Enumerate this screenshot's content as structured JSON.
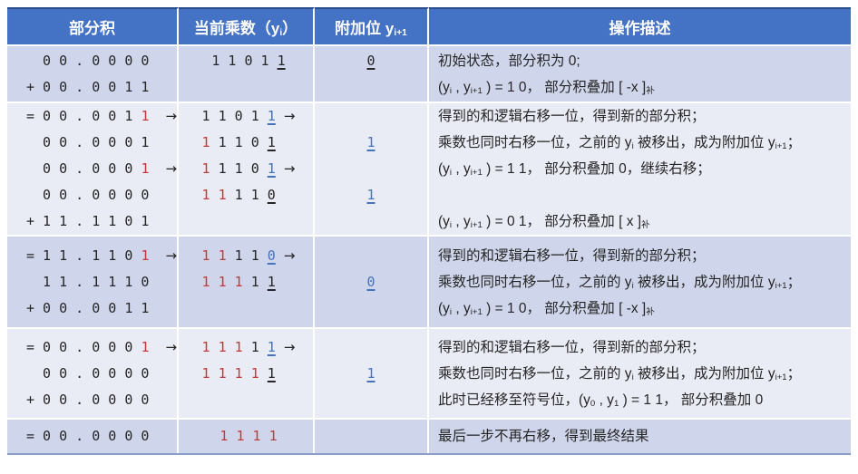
{
  "colors": {
    "header_bg": "#4472C4",
    "header_top_border": "#2B4C8C",
    "band_dark": "#CFD5EA",
    "band_light": "#E9EBF5",
    "digit_red": "#C3383A",
    "digit_blue": "#4574BD",
    "text_ink": "#262626",
    "table_bottom_border": "#8B9DC7"
  },
  "header": {
    "cells": [
      {
        "key": "partial",
        "segments": [
          {
            "t": "部分积"
          }
        ]
      },
      {
        "key": "multiplier",
        "segments": [
          {
            "t": "当前乘数（y"
          },
          {
            "t": "i",
            "c": "sub"
          },
          {
            "t": "）"
          }
        ]
      },
      {
        "key": "extra",
        "segments": [
          {
            "t": "附加位 y"
          },
          {
            "t": "i+1",
            "c": "sub"
          }
        ]
      },
      {
        "key": "desc",
        "segments": [
          {
            "t": "操作描述"
          }
        ]
      }
    ]
  },
  "rows": [
    {
      "partial": [
        [
          {
            "t": "  0 0 . 0 0 0 0"
          }
        ],
        [
          {
            "t": "+ 0 0 . 0 0 1 1"
          }
        ]
      ],
      "multiplier": [
        [
          {
            "t": "1 1 0 1 "
          },
          {
            "t": "1",
            "c": "u"
          }
        ],
        []
      ],
      "extra": [
        [
          {
            "t": "0",
            "c": "u"
          }
        ],
        []
      ],
      "desc": [
        [
          {
            "t": "初始状态，部分积为 0;"
          }
        ],
        [
          {
            "t": "(y"
          },
          {
            "t": "i",
            "c": "sub"
          },
          {
            "t": " , y"
          },
          {
            "t": "i+1",
            "c": "sub"
          },
          {
            "t": " ) = 1 0， 部分积叠加 [ -x ]"
          },
          {
            "t": "补",
            "c": "sub"
          }
        ]
      ]
    },
    {
      "partial": [
        [
          {
            "t": "= 0 0 . 0 0 1 "
          },
          {
            "t": "1",
            "c": "red"
          },
          {
            "t": "  "
          },
          {
            "t": "→",
            "c": "arrow"
          }
        ],
        [
          {
            "t": "  0 0 . 0 0 0 1"
          }
        ],
        [
          {
            "t": "  0 0 . 0 0 0 "
          },
          {
            "t": "1",
            "c": "red"
          },
          {
            "t": "  "
          },
          {
            "t": "→",
            "c": "arrow"
          }
        ],
        [
          {
            "t": "  0 0 . 0 0 0 0"
          }
        ],
        [
          {
            "t": "+ 1 1 . 1 1 0 1"
          }
        ]
      ],
      "multiplier": [
        [
          {
            "t": "1 1 0 1 "
          },
          {
            "t": "1",
            "c": "bu"
          },
          {
            "t": " "
          },
          {
            "t": "→",
            "c": "arrow"
          }
        ],
        [
          {
            "t": "1",
            "c": "red"
          },
          {
            "t": " 1 1 0 "
          },
          {
            "t": "1",
            "c": "u"
          }
        ],
        [
          {
            "t": "1",
            "c": "red"
          },
          {
            "t": " 1 1 0 "
          },
          {
            "t": "1",
            "c": "bu"
          },
          {
            "t": " "
          },
          {
            "t": "→",
            "c": "arrow"
          }
        ],
        [
          {
            "t": "1 1",
            "c": "red"
          },
          {
            "t": " 1 1 "
          },
          {
            "t": "0",
            "c": "u"
          }
        ],
        []
      ],
      "extra": [
        [],
        [
          {
            "t": "1",
            "c": "bu"
          }
        ],
        [],
        [
          {
            "t": "1",
            "c": "bu"
          }
        ],
        []
      ],
      "desc": [
        [
          {
            "t": "得到的和逻辑右移一位，得到新的部分积；"
          }
        ],
        [
          {
            "t": "乘数也同时右移一位，之前的 y"
          },
          {
            "t": "i",
            "c": "sub"
          },
          {
            "t": " 被移出，成为附加位 y"
          },
          {
            "t": "i+1",
            "c": "sub"
          },
          {
            "t": "；"
          }
        ],
        [
          {
            "t": "(y"
          },
          {
            "t": "i",
            "c": "sub"
          },
          {
            "t": " , y"
          },
          {
            "t": "i+1",
            "c": "sub"
          },
          {
            "t": " ) = 1 1， 部分积叠加 0，继续右移；"
          }
        ],
        [],
        [
          {
            "t": "(y"
          },
          {
            "t": "i",
            "c": "sub"
          },
          {
            "t": " , y"
          },
          {
            "t": "i+1",
            "c": "sub"
          },
          {
            "t": " ) = 0 1， 部分积叠加 [ x ]"
          },
          {
            "t": "补",
            "c": "sub"
          }
        ]
      ]
    },
    {
      "partial": [
        [
          {
            "t": "= 1 1 . 1 1 0 "
          },
          {
            "t": "1",
            "c": "red"
          },
          {
            "t": "  "
          },
          {
            "t": "→",
            "c": "arrow"
          }
        ],
        [
          {
            "t": "  1 1 . 1 1 1 0"
          }
        ],
        [
          {
            "t": "+ 0 0 . 0 0 1 1"
          }
        ]
      ],
      "multiplier": [
        [
          {
            "t": "1 1",
            "c": "red"
          },
          {
            "t": " 1 1 "
          },
          {
            "t": "0",
            "c": "bu"
          },
          {
            "t": " "
          },
          {
            "t": "→",
            "c": "arrow"
          }
        ],
        [
          {
            "t": "1 1 1",
            "c": "red"
          },
          {
            "t": " 1 "
          },
          {
            "t": "1",
            "c": "u"
          }
        ],
        []
      ],
      "extra": [
        [],
        [
          {
            "t": "0",
            "c": "bu"
          }
        ],
        []
      ],
      "desc": [
        [
          {
            "t": "得到的和逻辑右移一位，得到新的部分积；"
          }
        ],
        [
          {
            "t": "乘数也同时右移一位，之前的 y"
          },
          {
            "t": "i",
            "c": "sub"
          },
          {
            "t": " 被移出，成为附加位 y"
          },
          {
            "t": "i+1",
            "c": "sub"
          },
          {
            "t": "；"
          }
        ],
        [
          {
            "t": "(y"
          },
          {
            "t": "i",
            "c": "sub"
          },
          {
            "t": " , y"
          },
          {
            "t": "i+1",
            "c": "sub"
          },
          {
            "t": " ) = 1 0， 部分积叠加 [ -x ]"
          },
          {
            "t": "补",
            "c": "sub"
          }
        ]
      ]
    },
    {
      "partial": [
        [
          {
            "t": "= 0 0 . 0 0 0 "
          },
          {
            "t": "1",
            "c": "red"
          },
          {
            "t": "  "
          },
          {
            "t": "→",
            "c": "arrow"
          }
        ],
        [
          {
            "t": "  0 0 . 0 0 0 0"
          }
        ],
        [
          {
            "t": "+ 0 0 . 0 0 0 0"
          }
        ]
      ],
      "multiplier": [
        [
          {
            "t": "1 1 1",
            "c": "red"
          },
          {
            "t": " 1 "
          },
          {
            "t": "1",
            "c": "bu"
          },
          {
            "t": " "
          },
          {
            "t": "→",
            "c": "arrow"
          }
        ],
        [
          {
            "t": "1 1 1 1",
            "c": "red"
          },
          {
            "t": " "
          },
          {
            "t": "1",
            "c": "u"
          }
        ],
        []
      ],
      "extra": [
        [],
        [
          {
            "t": "1",
            "c": "bu"
          }
        ],
        []
      ],
      "desc": [
        [
          {
            "t": "得到的和逻辑右移一位，得到新的部分积；"
          }
        ],
        [
          {
            "t": "乘数也同时右移一位，之前的 y"
          },
          {
            "t": "i",
            "c": "sub"
          },
          {
            "t": " 被移出，成为附加位 y"
          },
          {
            "t": "i+1",
            "c": "sub"
          },
          {
            "t": "；"
          }
        ],
        [
          {
            "t": "此时已经移至符号位，(y"
          },
          {
            "t": "0",
            "c": "sub"
          },
          {
            "t": " , y"
          },
          {
            "t": "1",
            "c": "sub"
          },
          {
            "t": " ) = 1 1， 部分积叠加 0"
          }
        ]
      ]
    },
    {
      "partial": [
        [
          {
            "t": "= 0 0 . 0 0 0 0"
          }
        ]
      ],
      "multiplier": [
        [
          {
            "t": "1 1 1 1",
            "c": "red"
          }
        ]
      ],
      "extra": [
        []
      ],
      "desc": [
        [
          {
            "t": "最后一步不再右移，得到最终结果"
          }
        ]
      ]
    }
  ]
}
